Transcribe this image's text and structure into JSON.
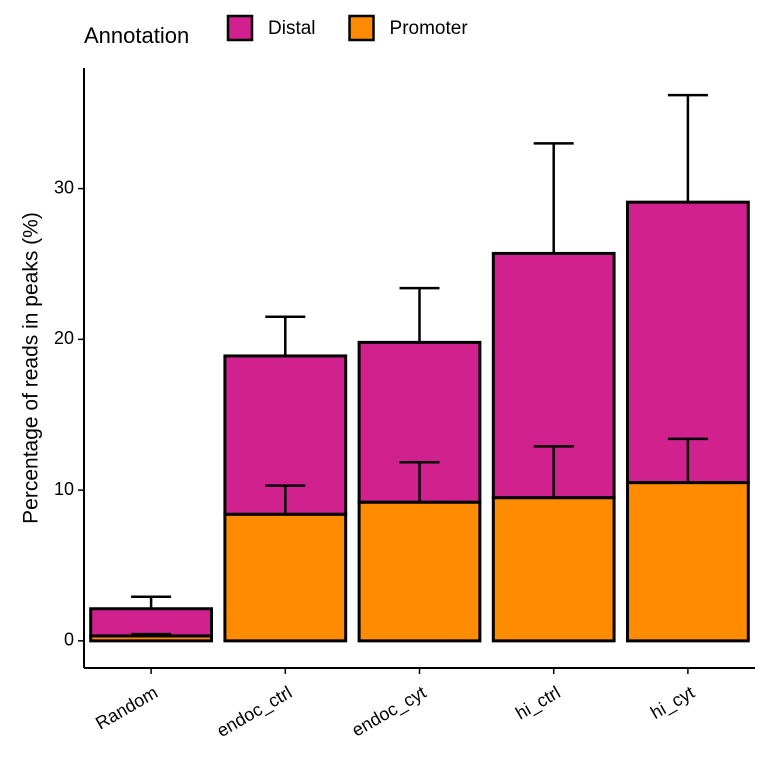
{
  "chart_data": {
    "type": "bar",
    "stacked": true,
    "y_label": "Percentage of reads in peaks (%)",
    "legend_title": "Annotation",
    "legend_position": "top",
    "categories": [
      "Random",
      "endoc_ctrl",
      "endoc_cyt",
      "hi_ctrl",
      "hi_cyt"
    ],
    "series": [
      {
        "name": "Distal",
        "color": "#d0218f",
        "values": [
          1.8,
          10.5,
          10.6,
          16.2,
          18.6
        ],
        "errors": [
          0.8,
          2.6,
          3.6,
          7.3,
          7.1
        ]
      },
      {
        "name": "Promoter",
        "color": "#ff8c00",
        "values": [
          0.33,
          8.4,
          9.2,
          9.5,
          10.5
        ],
        "errors": [
          0.12,
          1.9,
          2.65,
          3.4,
          2.9
        ]
      }
    ],
    "ylim": [
      -1.8,
      38
    ],
    "yticks": [
      0,
      10,
      20,
      30
    ]
  }
}
